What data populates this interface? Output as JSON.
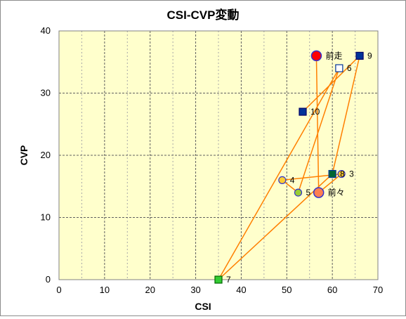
{
  "chart_data": {
    "type": "scatter",
    "title": "CSI-CVP変動",
    "xlabel": "CSI",
    "ylabel": "CVP",
    "xlim": [
      0,
      70
    ],
    "ylim": [
      0,
      40
    ],
    "xticks": [
      "0",
      "10",
      "20",
      "30",
      "40",
      "50",
      "60",
      "70"
    ],
    "yticks": [
      "0",
      "10",
      "20",
      "30",
      "40"
    ],
    "grid": true,
    "plot_background": "#ffffcc",
    "line_color": "#ff7f00",
    "points": [
      {
        "label": "前走",
        "x": 56.5,
        "y": 36,
        "marker": "circle-large",
        "fill": "#ff0000",
        "stroke": "#3333cc"
      },
      {
        "label": "前々",
        "x": 57.0,
        "y": 14,
        "marker": "circle-large",
        "fill": "#ff7f50",
        "stroke": "#3333cc"
      },
      {
        "label": "3",
        "x": 62.0,
        "y": 17,
        "marker": "circle",
        "fill": "#ffcc33",
        "stroke": "#3333cc"
      },
      {
        "label": "4",
        "x": 49.0,
        "y": 16,
        "marker": "circle",
        "fill": "#ffcc33",
        "stroke": "#3333cc"
      },
      {
        "label": "5",
        "x": 52.5,
        "y": 14,
        "marker": "circle",
        "fill": "#99cc33",
        "stroke": "#3333cc"
      },
      {
        "label": "6",
        "x": 61.5,
        "y": 34,
        "marker": "square",
        "fill": "#ffffff",
        "stroke": "#003399"
      },
      {
        "label": "7",
        "x": 35.0,
        "y": 0,
        "marker": "square",
        "fill": "#33cc33",
        "stroke": "#006600"
      },
      {
        "label": "8",
        "x": 60.0,
        "y": 17,
        "marker": "square",
        "fill": "#006633",
        "stroke": "#003399"
      },
      {
        "label": "9",
        "x": 66.0,
        "y": 36,
        "marker": "square",
        "fill": "#003399",
        "stroke": "#000066"
      },
      {
        "label": "10",
        "x": 53.5,
        "y": 27,
        "marker": "square",
        "fill": "#003399",
        "stroke": "#000066"
      }
    ]
  }
}
